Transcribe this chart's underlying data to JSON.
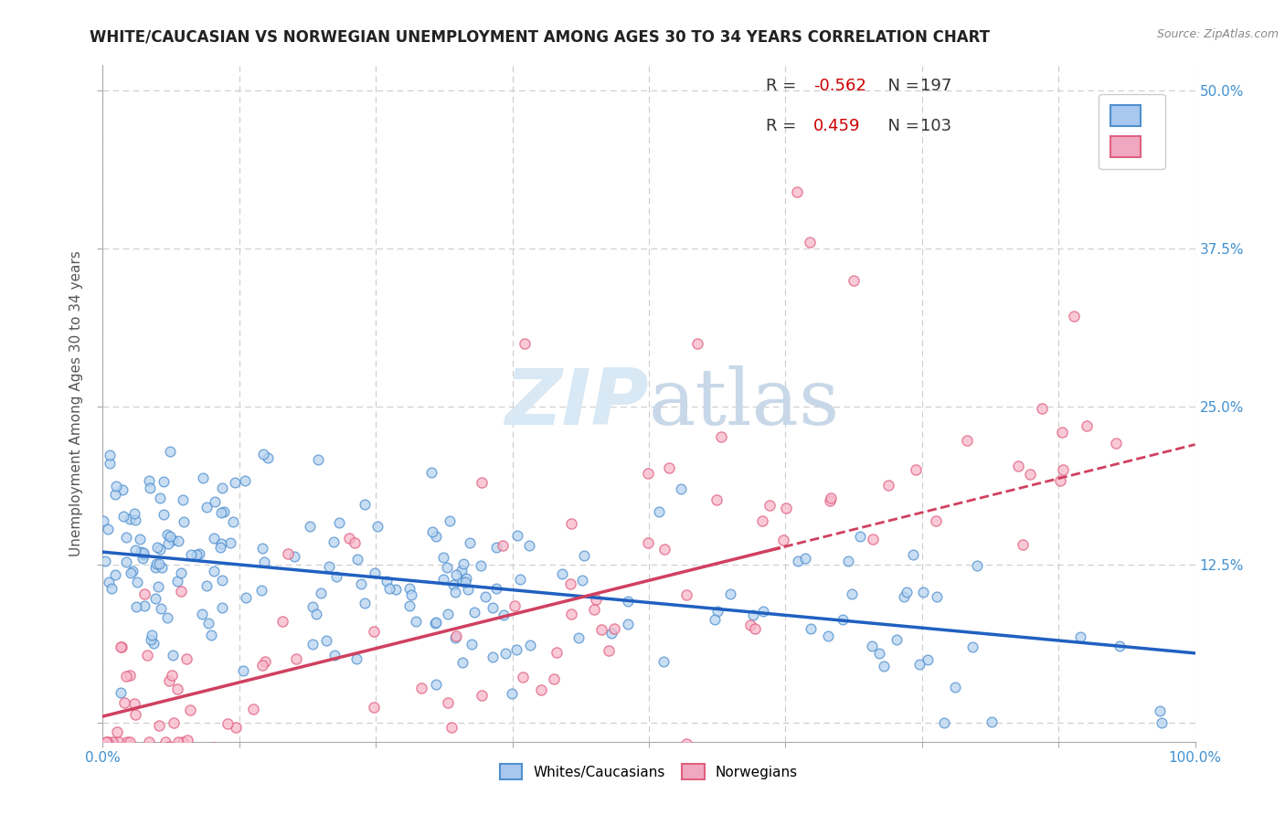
{
  "title": "WHITE/CAUCASIAN VS NORWEGIAN UNEMPLOYMENT AMONG AGES 30 TO 34 YEARS CORRELATION CHART",
  "source": "Source: ZipAtlas.com",
  "ylabel": "Unemployment Among Ages 30 to 34 years",
  "xlim": [
    0,
    100
  ],
  "ylim": [
    -1.5,
    52
  ],
  "yticks": [
    0,
    12.5,
    25.0,
    37.5,
    50.0
  ],
  "xticks": [
    0,
    12.5,
    25.0,
    37.5,
    50.0,
    62.5,
    75.0,
    87.5,
    100.0
  ],
  "blue_R": -0.562,
  "blue_N": 197,
  "pink_R": 0.459,
  "pink_N": 103,
  "blue_face_color": "#b8d4f0",
  "blue_edge_color": "#5090d0",
  "pink_face_color": "#f8b8cc",
  "pink_edge_color": "#e06080",
  "blue_line_color": "#2060c0",
  "pink_line_color": "#d04060",
  "blue_legend_color": "#a8c8f0",
  "pink_legend_color": "#f0a8c0",
  "r_value_color": "#cc0000",
  "n_value_color": "#333333",
  "tick_color": "#4090d0",
  "ylabel_color": "#555555",
  "title_color": "#222222",
  "watermark_color": "#d8e8f4",
  "grid_color": "#cccccc",
  "background_color": "#ffffff",
  "title_fontsize": 12,
  "ylabel_fontsize": 11,
  "tick_fontsize": 11,
  "legend_fontsize": 13,
  "source_fontsize": 9,
  "blue_line_start_y": 13.5,
  "blue_line_end_y": 5.5,
  "pink_line_start_y": 0.5,
  "pink_line_end_y": 22.0,
  "pink_dash_start_x": 62,
  "pink_dash_end_y": 27.0
}
